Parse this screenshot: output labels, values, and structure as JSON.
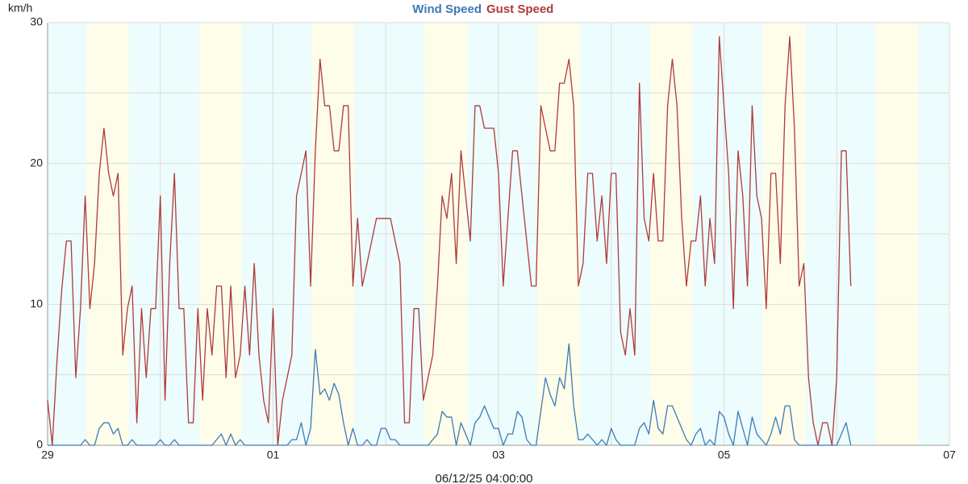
{
  "chart_data": {
    "type": "line",
    "ylabel": "km/h",
    "xlabel": "06/12/25 04:00:00",
    "x": [
      0,
      1,
      2,
      3,
      4,
      5,
      6,
      7,
      8,
      9,
      10,
      11,
      12,
      13,
      14,
      15,
      16,
      17,
      18,
      19,
      20,
      21,
      22,
      23,
      24,
      25,
      26,
      27,
      28,
      29,
      30,
      31,
      32,
      33,
      34,
      35,
      36,
      37,
      38,
      39,
      40,
      41,
      42,
      43,
      44,
      45,
      46,
      47,
      48,
      49,
      50,
      51,
      52,
      53,
      54,
      55,
      56,
      57,
      58,
      59,
      60,
      61,
      62,
      63,
      64,
      65,
      66,
      67,
      68,
      69,
      70,
      71,
      72,
      73,
      74,
      75,
      76,
      77,
      78,
      79,
      80,
      81,
      82,
      83,
      84,
      85,
      86,
      87,
      88,
      89,
      90,
      91,
      92,
      93,
      94,
      95,
      96,
      97,
      98,
      99,
      100,
      101,
      102,
      103,
      104,
      105,
      106,
      107,
      108,
      109,
      110,
      111,
      112,
      113,
      114,
      115,
      116,
      117,
      118,
      119,
      120,
      121,
      122,
      123,
      124,
      125,
      126,
      127,
      128,
      129,
      130,
      131,
      132,
      133,
      134,
      135,
      136,
      137,
      138,
      139,
      140,
      141,
      142,
      143,
      144,
      145,
      146,
      147,
      148,
      149,
      150,
      151,
      152,
      153,
      154,
      155,
      156,
      157,
      158,
      159,
      160,
      161,
      162,
      163,
      164,
      165,
      166,
      167,
      168,
      169,
      170,
      171
    ],
    "series": [
      {
        "name": "Wind Speed",
        "color": "#3d7ab5",
        "values": [
          0,
          0,
          0,
          0,
          0,
          0,
          0,
          0,
          0.4,
          0,
          0,
          1.2,
          1.6,
          1.6,
          0.8,
          1.2,
          0,
          0,
          0.4,
          0,
          0,
          0,
          0,
          0,
          0.4,
          0,
          0,
          0.4,
          0,
          0,
          0,
          0,
          0,
          0,
          0,
          0,
          0.4,
          0.8,
          0,
          0.8,
          0,
          0.4,
          0,
          0,
          0,
          0,
          0,
          0,
          0,
          0,
          0,
          0,
          0.4,
          0.4,
          1.6,
          0,
          1.2,
          6.8,
          3.6,
          4,
          3.2,
          4.4,
          3.6,
          1.6,
          0,
          1.2,
          0,
          0,
          0.4,
          0,
          0,
          1.2,
          1.2,
          0.4,
          0.4,
          0,
          0,
          0,
          0,
          0,
          0,
          0,
          0.4,
          0.8,
          2.4,
          2,
          2,
          0,
          1.6,
          0.8,
          0,
          1.6,
          2,
          2.8,
          2,
          1.2,
          1.2,
          0,
          0.8,
          0.8,
          2.4,
          2,
          0.4,
          0,
          0,
          2.4,
          4.8,
          3.6,
          2.8,
          4.8,
          4,
          7.2,
          2.8,
          0.4,
          0.4,
          0.8,
          0.4,
          0,
          0.4,
          0,
          1.2,
          0.4,
          0,
          0,
          0,
          0,
          1.2,
          1.6,
          0.8,
          3.2,
          1.2,
          0.8,
          2.8,
          2.8,
          2,
          1.2,
          0.4,
          0,
          0.8,
          1.2,
          0,
          0.4,
          0,
          2.4,
          2,
          0.8,
          0,
          2.4,
          1.2,
          0,
          2,
          0.8,
          0.4,
          0,
          0.8,
          2,
          0.8,
          2.8,
          2.8,
          0.4,
          0,
          0,
          0,
          0,
          0,
          0,
          0,
          0,
          0,
          0.8,
          1.6,
          0
        ]
      },
      {
        "name": "Gust Speed",
        "color": "#b03a3a",
        "values": [
          3.2,
          0,
          6,
          11,
          14.5,
          14.5,
          4.8,
          9.7,
          17.7,
          9.7,
          12.9,
          19.3,
          22.5,
          19.3,
          17.7,
          19.3,
          6.4,
          9.7,
          11.3,
          1.6,
          9.7,
          4.8,
          9.7,
          9.7,
          17.7,
          3.2,
          12.9,
          19.3,
          9.7,
          9.7,
          1.6,
          1.6,
          9.7,
          3.2,
          9.7,
          6.4,
          11.3,
          11.3,
          4.8,
          11.3,
          4.8,
          6.4,
          11.3,
          6.4,
          12.9,
          6.4,
          3.2,
          1.6,
          9.7,
          0,
          3.2,
          4.8,
          6.4,
          17.7,
          19.3,
          20.9,
          11.3,
          20.9,
          27.4,
          24.1,
          24.1,
          20.9,
          20.9,
          24.1,
          24.1,
          11.3,
          16.1,
          11.3,
          12.9,
          14.5,
          16.1,
          16.1,
          16.1,
          16.1,
          14.5,
          12.9,
          1.6,
          1.6,
          9.7,
          9.7,
          3.2,
          4.8,
          6.4,
          11.3,
          17.7,
          16.1,
          19.3,
          12.9,
          20.9,
          17.7,
          14.5,
          24.1,
          24.1,
          22.5,
          22.5,
          22.5,
          19.3,
          11.3,
          16.1,
          20.9,
          20.9,
          17.7,
          14.5,
          11.3,
          11.3,
          24.1,
          22.5,
          20.9,
          20.9,
          25.7,
          25.7,
          27.4,
          24.1,
          11.3,
          12.9,
          19.3,
          19.3,
          14.5,
          17.7,
          12.9,
          19.3,
          19.3,
          8,
          6.4,
          9.7,
          6.4,
          25.7,
          16.1,
          14.5,
          19.3,
          14.5,
          14.5,
          24.1,
          27.4,
          24.1,
          16.1,
          11.3,
          14.5,
          14.5,
          17.7,
          11.3,
          16.1,
          12.9,
          29,
          24.1,
          19.3,
          9.7,
          20.9,
          17.7,
          11.3,
          24.1,
          17.7,
          16.1,
          9.7,
          19.3,
          19.3,
          12.9,
          24.1,
          29,
          22.5,
          11.3,
          12.9,
          4.8,
          1.6,
          0,
          1.6,
          1.6,
          0,
          4.8,
          20.9,
          20.9,
          11.3
        ]
      }
    ],
    "xlim": [
      0,
      192
    ],
    "xticks": [
      {
        "value": 0,
        "label": "29"
      },
      {
        "value": 24,
        "label": null
      },
      {
        "value": 48,
        "label": "01"
      },
      {
        "value": 72,
        "label": null
      },
      {
        "value": 96,
        "label": "03"
      },
      {
        "value": 120,
        "label": null
      },
      {
        "value": 144,
        "label": "05"
      },
      {
        "value": 168,
        "label": null
      },
      {
        "value": 192,
        "label": "07"
      }
    ],
    "ylim": [
      0,
      30
    ],
    "yticks": [
      0,
      {
        "value": 5,
        "label": null
      },
      10,
      {
        "value": 15,
        "label": null
      },
      20,
      {
        "value": 25,
        "label": null
      },
      30
    ],
    "grid": true
  }
}
